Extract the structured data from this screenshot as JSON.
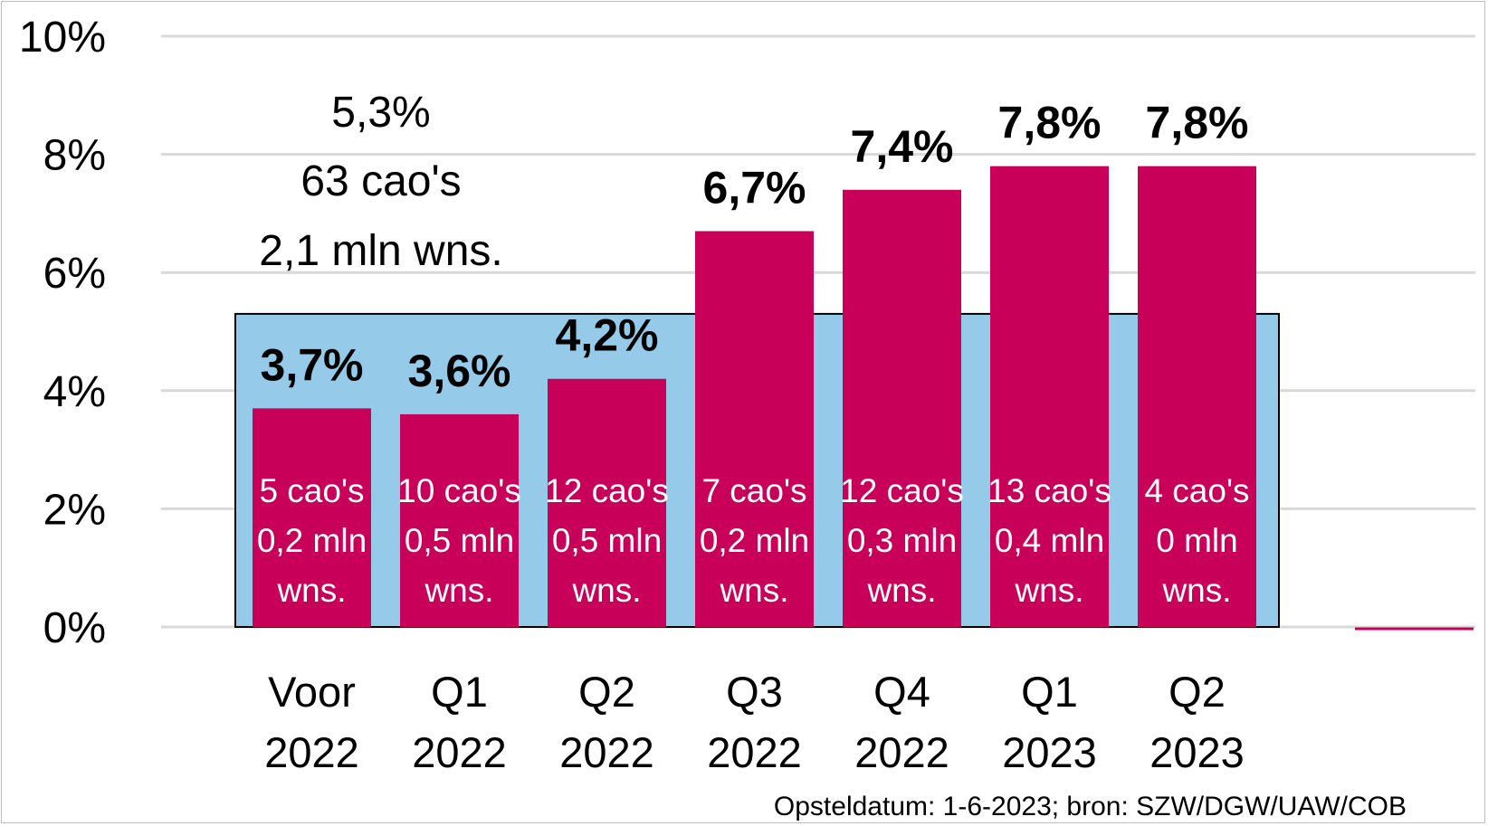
{
  "chart_data": {
    "type": "bar",
    "categories": [
      [
        "Voor",
        "2022"
      ],
      [
        "Q1",
        "2022"
      ],
      [
        "Q2",
        "2022"
      ],
      [
        "Q3",
        "2022"
      ],
      [
        "Q4",
        "2022"
      ],
      [
        "Q1",
        "2023"
      ],
      [
        "Q2",
        "2023"
      ]
    ],
    "series": [
      {
        "values": [
          3.7,
          3.6,
          4.2,
          6.7,
          7.4,
          7.8,
          7.8
        ]
      }
    ],
    "value_labels": [
      "3,7%",
      "3,6%",
      "4,2%",
      "6,7%",
      "7,4%",
      "7,8%",
      "7,8%"
    ],
    "bar_annotations": [
      [
        "5 cao's",
        "0,2 mln",
        "wns."
      ],
      [
        "10 cao's",
        "0,5 mln",
        "wns."
      ],
      [
        "12 cao's",
        "0,5 mln",
        "wns."
      ],
      [
        "7 cao's",
        "0,2 mln",
        "wns."
      ],
      [
        "12 cao's",
        "0,3 mln",
        "wns."
      ],
      [
        "13 cao's",
        "0,4 mln",
        "wns."
      ],
      [
        "4 cao's",
        "0 mln",
        "wns."
      ]
    ],
    "background_bar": {
      "value": 5.3,
      "labels": [
        "5,3%",
        "63 cao's",
        "2,1 mln wns."
      ]
    },
    "y_ticks": [
      "0%",
      "2%",
      "4%",
      "6%",
      "8%",
      "10%"
    ],
    "ylim": [
      0,
      10
    ],
    "grid": true,
    "colors": {
      "bar": "#c8005a",
      "background_bar": "#95cbe8",
      "grid": "#d9d9d9"
    },
    "source": "Opsteldatum: 1-6-2023; bron: SZW/DGW/UAW/COB"
  }
}
